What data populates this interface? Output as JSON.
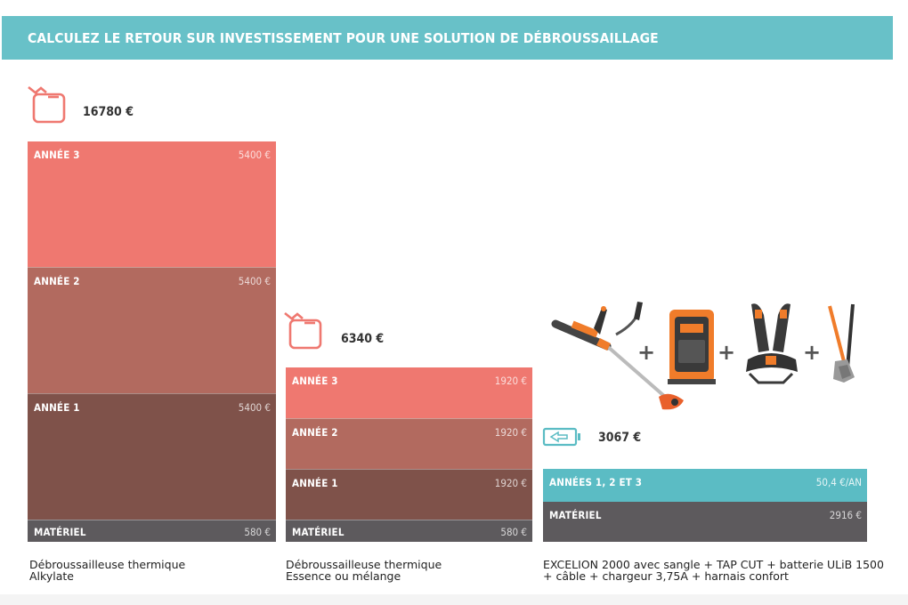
{
  "banner": {
    "title": "CALCULEZ LE RETOUR SUR INVESTISSEMENT POUR UNE SOLUTION DE DÉBROUSSAILLAGE"
  },
  "colors": {
    "banner": "#68c1c8",
    "year3": "#ef7870",
    "year2": "#b26a5f",
    "year1": "#7f524a",
    "material": "#5d5a5d",
    "battery_years": "#5bbcc4",
    "icon_red": "#ef7870",
    "icon_teal": "#5bbcc4"
  },
  "columns": [
    {
      "icon": "fuel-can-icon",
      "total": "16780 €",
      "segments": [
        {
          "label": "ANNÉE 3",
          "value": "5400 €"
        },
        {
          "label": "ANNÉE 2",
          "value": "5400 €"
        },
        {
          "label": "ANNÉE 1",
          "value": "5400 €"
        },
        {
          "label": "MATÉRIEL",
          "value": "580 €"
        }
      ],
      "caption_line1": "Débroussailleuse thermique",
      "caption_line2": "Alkylate"
    },
    {
      "icon": "fuel-can-icon",
      "total": "6340 €",
      "segments": [
        {
          "label": "ANNÉE 3",
          "value": "1920 €"
        },
        {
          "label": "ANNÉE 2",
          "value": "1920 €"
        },
        {
          "label": "ANNÉE 1",
          "value": "1920 €"
        },
        {
          "label": "MATÉRIEL",
          "value": "580 €"
        }
      ],
      "caption_line1": "Débroussailleuse thermique",
      "caption_line2": "Essence ou mélange"
    },
    {
      "icon": "battery-icon",
      "total": "3067 €",
      "segments": [
        {
          "label": "ANNÉES 1, 2 ET 3",
          "value": "50,4 €/AN"
        },
        {
          "label": "MATÉRIEL",
          "value": "2916 €"
        }
      ],
      "caption_line1": "EXCELION 2000 avec sangle + TAP CUT + batterie ULiB 1500",
      "caption_line2": "+ câble + chargeur 3,75A + harnais confort",
      "product_plus_signs": [
        "+",
        "+",
        "+"
      ]
    }
  ]
}
